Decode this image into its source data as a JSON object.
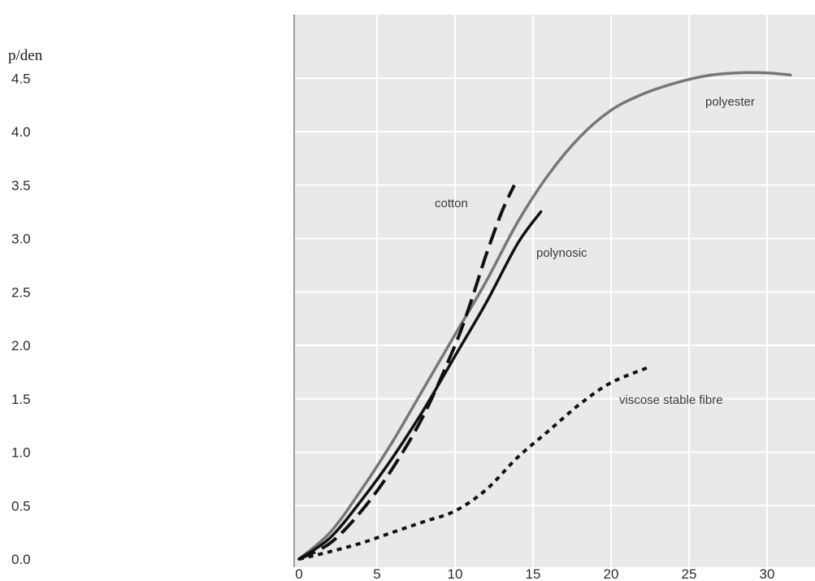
{
  "chart_data": {
    "type": "line",
    "title": "",
    "xlabel": "",
    "ylabel": "p/den",
    "xlim": [
      0,
      33
    ],
    "ylim": [
      0,
      4.7
    ],
    "x_ticks": [
      "0",
      "5",
      "10",
      "15",
      "20",
      "25",
      "30"
    ],
    "y_ticks": [
      "0.0",
      "0.5",
      "1.0",
      "1.5",
      "2.0",
      "2.5",
      "3.0",
      "3.5",
      "4.0",
      "4.5"
    ],
    "grid": true,
    "series": [
      {
        "name": "polyester",
        "color": "#777777",
        "style": "solid",
        "x": [
          0,
          2,
          4,
          6,
          8,
          10,
          12,
          14,
          16,
          18,
          20,
          22,
          24,
          26,
          28,
          30,
          31.5
        ],
        "y": [
          0.0,
          0.25,
          0.65,
          1.1,
          1.6,
          2.1,
          2.6,
          3.15,
          3.6,
          3.95,
          4.2,
          4.35,
          4.45,
          4.52,
          4.55,
          4.55,
          4.53
        ]
      },
      {
        "name": "polynosic",
        "color": "#111111",
        "style": "solid",
        "x": [
          0,
          2,
          4,
          6,
          8,
          10,
          12,
          14,
          15.5
        ],
        "y": [
          0.0,
          0.2,
          0.55,
          0.95,
          1.4,
          1.9,
          2.4,
          2.95,
          3.25
        ]
      },
      {
        "name": "cotton",
        "color": "#111111",
        "style": "dashed",
        "x": [
          0,
          2,
          4,
          6,
          8,
          10,
          11,
          12,
          13,
          13.8
        ],
        "y": [
          0.0,
          0.15,
          0.45,
          0.85,
          1.35,
          2.0,
          2.4,
          2.85,
          3.25,
          3.5
        ]
      },
      {
        "name": "viscose stable fibre",
        "color": "#111111",
        "style": "dotted",
        "x": [
          0,
          2,
          4,
          6,
          8,
          10,
          12,
          14,
          16,
          18,
          20,
          22.5
        ],
        "y": [
          0.0,
          0.07,
          0.15,
          0.25,
          0.35,
          0.45,
          0.65,
          0.95,
          1.2,
          1.45,
          1.65,
          1.8
        ]
      }
    ]
  }
}
